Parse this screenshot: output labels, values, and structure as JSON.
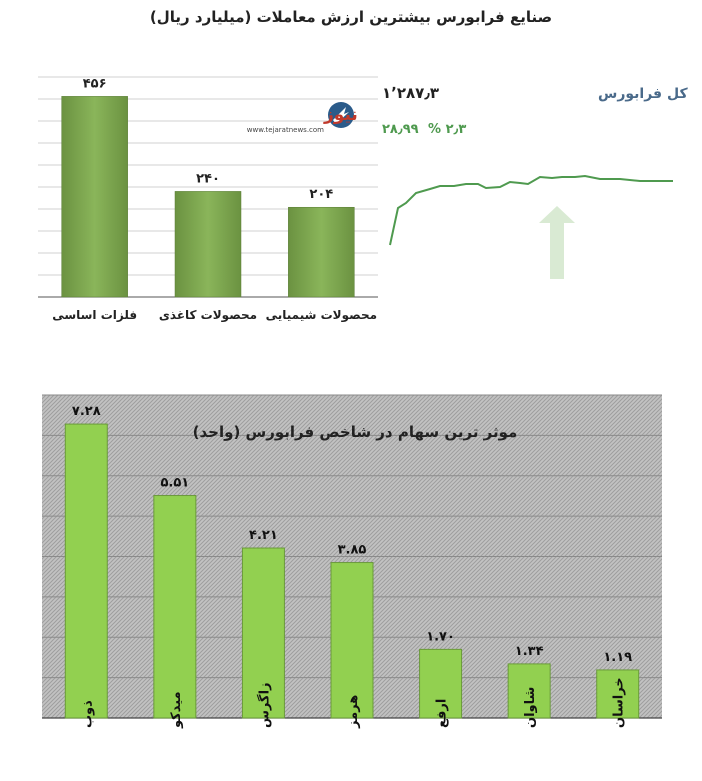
{
  "top_chart": {
    "title": "صنایع فرابورس بیشترین ارزش معاملات  (میلیارد ریال)",
    "chart_data": {
      "type": "bar",
      "title": "صنایع فرابورس بیشترین ارزش معاملات  (میلیارد ریال)",
      "categories": [
        "فلزات اساسی",
        "محصولات کاغذی",
        "محصولات شیمیایی"
      ],
      "values": [
        456,
        240,
        204
      ],
      "value_labels": [
        "۴۵۶",
        "۲۴۰",
        "۲۰۴"
      ],
      "ylim": [
        0,
        500
      ],
      "grid": true,
      "bar_color": "#77a04a"
    }
  },
  "index_panel": {
    "name": "کل فرابورس",
    "value": "۱٬۲۸۷٫۳",
    "change": "۲۸٫۹۹",
    "percent": "۲٫۳ %",
    "line_color": "#4f9a4f",
    "arrow_color": "#d9ead3"
  },
  "logo": {
    "name": "تجارت نیوز",
    "url": "www.tejaratnews.com"
  },
  "bottom_chart": {
    "chart_data": {
      "type": "bar",
      "title": "موثر ترین سهام در شاخص فرابورس (واحد)",
      "categories": [
        "ذوب",
        "میدکو",
        "زاگرس",
        "هرمز",
        "ارفع",
        "شاوان",
        "خراسان"
      ],
      "values": [
        7.28,
        5.51,
        4.21,
        3.85,
        1.7,
        1.34,
        1.19
      ],
      "value_labels": [
        "۷.۲۸",
        "۵.۵۱",
        "۴.۲۱",
        "۳.۸۵",
        "۱.۷۰",
        "۱.۳۴",
        "۱.۱۹"
      ],
      "ylim": [
        0,
        8
      ],
      "grid": true,
      "bar_color": "#92d050",
      "background": "#b8b8b8"
    }
  }
}
